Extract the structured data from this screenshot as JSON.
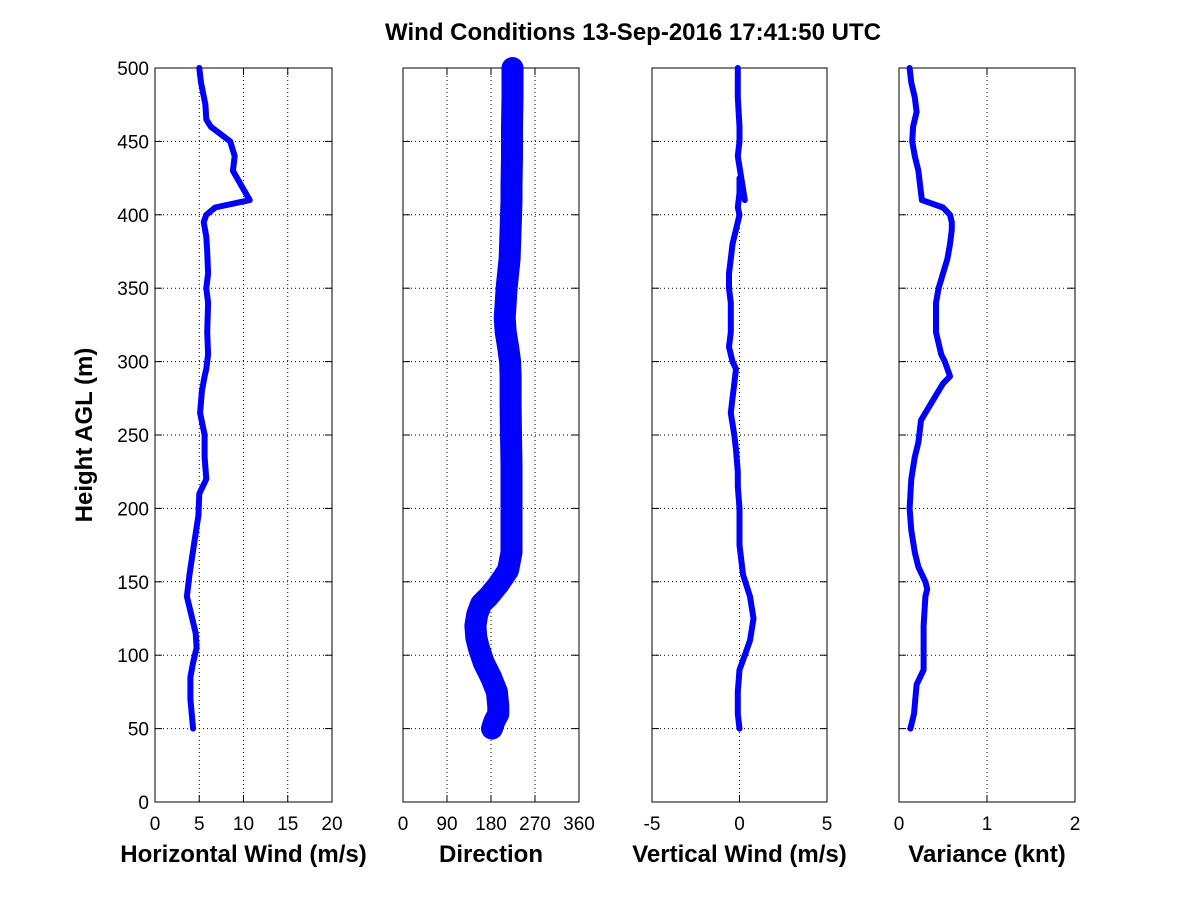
{
  "figure_title": "Wind Conditions 13-Sep-2016 17:41:50 UTC",
  "chart_data": [
    {
      "type": "line",
      "title": "",
      "xlabel": "Horizontal Wind (m/s)",
      "ylabel": "Height AGL (m)",
      "xlim": [
        0,
        20
      ],
      "ylim": [
        0,
        500
      ],
      "xticks": [
        "0",
        "5",
        "10",
        "15",
        "20"
      ],
      "yticks": [
        "0",
        "50",
        "100",
        "150",
        "200",
        "250",
        "300",
        "350",
        "400",
        "450",
        "500"
      ],
      "grid": "dotted",
      "color": "#0000ff",
      "series": [
        {
          "x": [
            4.3,
            4.0,
            4.0,
            4.3,
            4.7,
            4.6,
            4.2,
            3.6,
            3.9,
            4.4,
            4.9,
            5.0,
            5.8,
            5.6,
            5.6,
            5.1,
            5.3,
            5.6,
            5.8,
            6.0,
            5.9,
            6.0,
            5.8,
            6.0,
            5.9,
            5.8,
            5.5,
            5.8,
            6.8,
            10.7,
            8.8,
            9.0,
            8.5,
            6.3,
            5.8,
            5.7,
            5.2,
            5.0
          ],
          "y": [
            50,
            70,
            85,
            95,
            105,
            115,
            125,
            140,
            155,
            175,
            195,
            210,
            220,
            235,
            250,
            265,
            280,
            290,
            295,
            305,
            320,
            340,
            350,
            360,
            375,
            385,
            395,
            400,
            405,
            410,
            430,
            440,
            450,
            460,
            465,
            475,
            490,
            500
          ]
        }
      ]
    },
    {
      "type": "line",
      "title": "",
      "xlabel": "Direction",
      "ylabel": "",
      "xlim": [
        0,
        360
      ],
      "ylim": [
        0,
        500
      ],
      "xticks": [
        "0",
        "90",
        "180",
        "270",
        "360"
      ],
      "yticks": [],
      "grid": "dotted",
      "color": "#0000ff",
      "series": [
        {
          "x": [
            182,
            187,
            195,
            195,
            192,
            180,
            165,
            155,
            150,
            148,
            152,
            160,
            175,
            195,
            215,
            222,
            222,
            222,
            221,
            220,
            220,
            220,
            219,
            215,
            210,
            208,
            210,
            212,
            215,
            218,
            220,
            222,
            222,
            223,
            223,
            224,
            224
          ],
          "y": [
            50,
            55,
            60,
            65,
            75,
            85,
            95,
            105,
            112,
            120,
            128,
            135,
            140,
            148,
            158,
            170,
            200,
            230,
            250,
            270,
            280,
            290,
            300,
            310,
            320,
            330,
            340,
            350,
            360,
            370,
            390,
            410,
            420,
            440,
            460,
            480,
            500
          ]
        }
      ]
    },
    {
      "type": "line",
      "title": "",
      "xlabel": "Vertical Wind (m/s)",
      "ylabel": "",
      "xlim": [
        -5,
        5
      ],
      "ylim": [
        0,
        500
      ],
      "xticks": [
        "-5",
        "0",
        "5"
      ],
      "yticks": [],
      "grid": "dotted",
      "color": "#0000ff",
      "series": [
        {
          "x": [
            0.0,
            -0.1,
            -0.1,
            0.0,
            0.3,
            0.6,
            0.8,
            0.6,
            0.2,
            0.0,
            0.0,
            -0.1,
            -0.1,
            -0.2,
            -0.3,
            -0.5,
            -0.4,
            -0.3,
            -0.2,
            -0.4,
            -0.6,
            -0.5,
            -0.5,
            -0.6,
            -0.6,
            -0.5,
            -0.4,
            -0.1,
            0.0,
            -0.1,
            0.0,
            0.0,
            0.3,
            -0.1,
            0.0,
            0.0,
            -0.1,
            -0.1
          ],
          "y": [
            50,
            60,
            75,
            90,
            100,
            110,
            125,
            140,
            155,
            175,
            200,
            215,
            225,
            240,
            250,
            265,
            275,
            285,
            295,
            300,
            310,
            320,
            340,
            350,
            360,
            370,
            380,
            395,
            400,
            405,
            415,
            425,
            410,
            440,
            450,
            460,
            480,
            500
          ]
        }
      ]
    },
    {
      "type": "line",
      "title": "",
      "xlabel": "Variance (knt)",
      "ylabel": "",
      "xlim": [
        0,
        2
      ],
      "ylim": [
        0,
        500
      ],
      "xticks": [
        "0",
        "1",
        "2"
      ],
      "yticks": [],
      "grid": "dotted",
      "color": "#0000ff",
      "series": [
        {
          "x": [
            0.13,
            0.17,
            0.2,
            0.28,
            0.28,
            0.28,
            0.3,
            0.32,
            0.3,
            0.22,
            0.18,
            0.14,
            0.12,
            0.14,
            0.18,
            0.22,
            0.25,
            0.35,
            0.5,
            0.58,
            0.55,
            0.52,
            0.48,
            0.42,
            0.42,
            0.45,
            0.5,
            0.55,
            0.58,
            0.6,
            0.6,
            0.58,
            0.5,
            0.26,
            0.24,
            0.22,
            0.18,
            0.15,
            0.16,
            0.2,
            0.18,
            0.14,
            0.12
          ],
          "y": [
            50,
            60,
            80,
            90,
            100,
            120,
            140,
            145,
            150,
            160,
            170,
            185,
            200,
            220,
            235,
            245,
            260,
            270,
            285,
            290,
            295,
            300,
            305,
            320,
            340,
            350,
            360,
            370,
            380,
            390,
            395,
            400,
            405,
            410,
            420,
            430,
            440,
            450,
            460,
            470,
            480,
            490,
            500
          ]
        }
      ]
    }
  ]
}
